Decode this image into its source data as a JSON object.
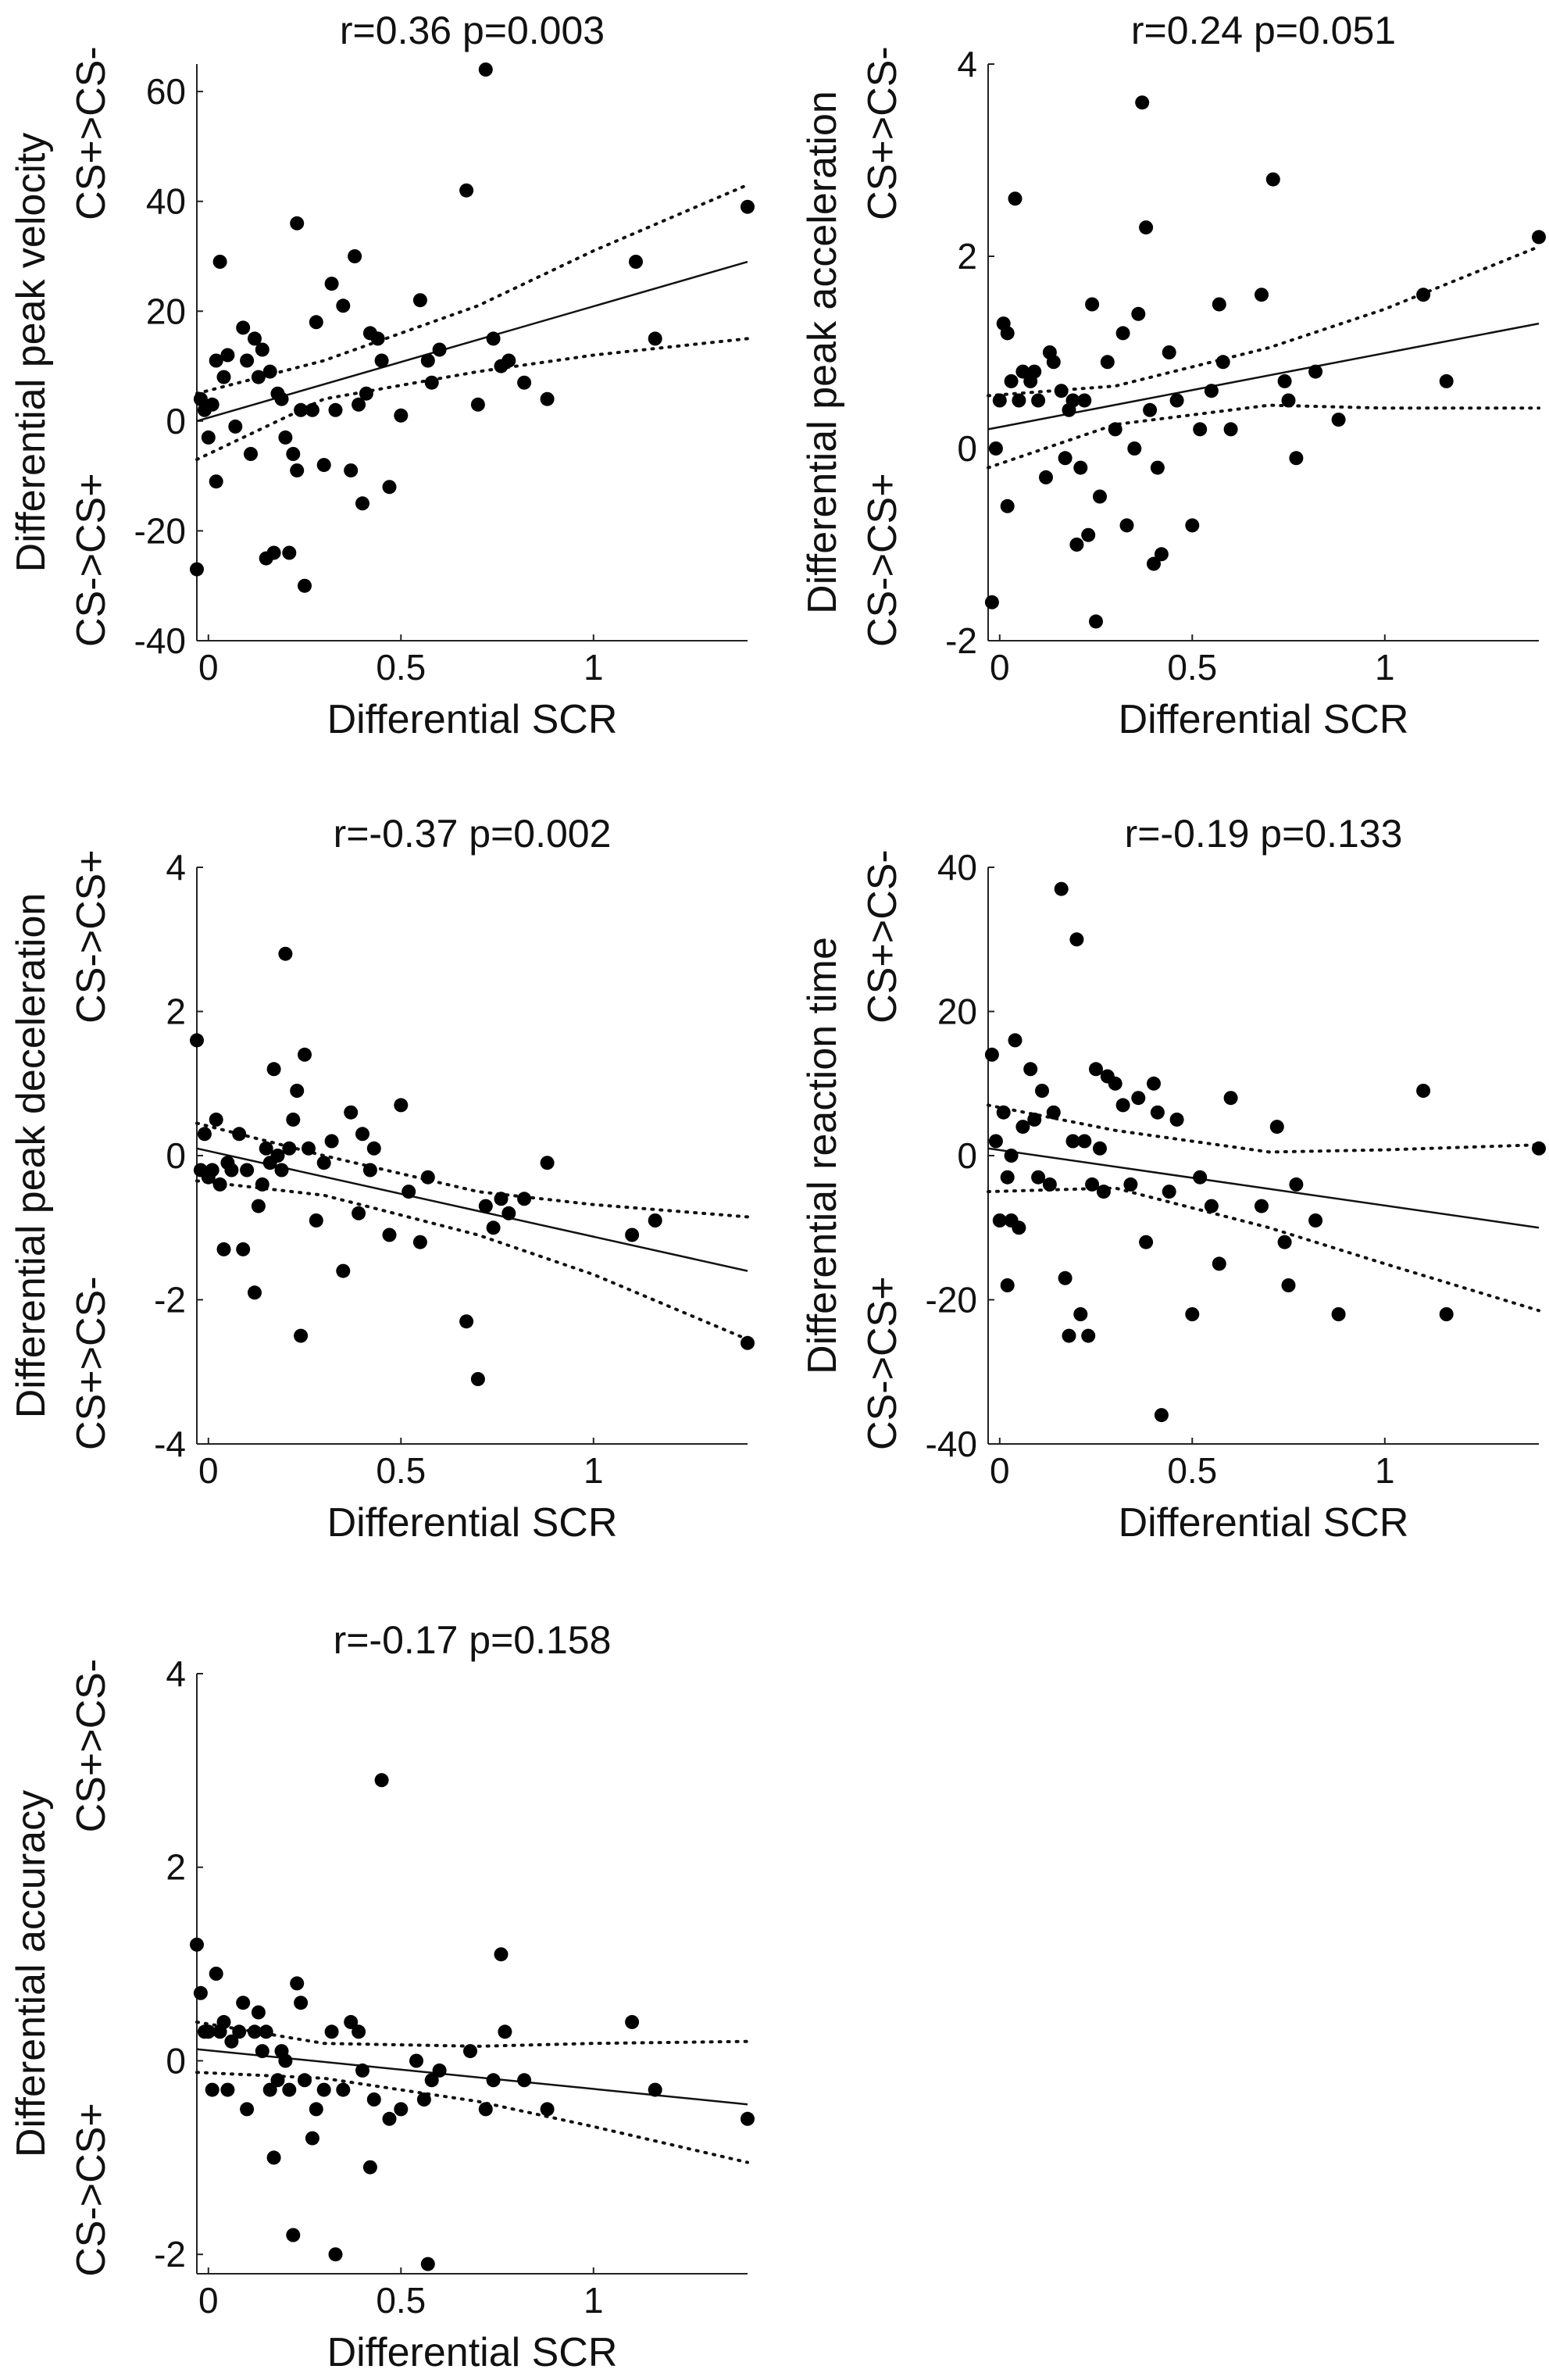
{
  "figure": {
    "description_free": true
  },
  "chart_data": [
    {
      "type": "scatter",
      "title": "r=0.36 p=0.003",
      "xlabel": "Differential SCR",
      "ylabel": "Differential peak velocity",
      "ylabel_top": "CS+>CS-",
      "ylabel_bottom": "CS->CS+",
      "xlim": [
        -0.03,
        1.4
      ],
      "ylim": [
        -40,
        65
      ],
      "xticks": [
        0,
        0.5,
        1
      ],
      "xtick_labels": [
        "0",
        "0.5",
        "1"
      ],
      "yticks": [
        -40,
        -20,
        0,
        20,
        40,
        60
      ],
      "ytick_labels": [
        "-40",
        "-20",
        "0",
        "20",
        "40",
        "60"
      ],
      "points": {
        "x": [
          -0.03,
          -0.02,
          -0.01,
          0.0,
          0.01,
          0.02,
          0.02,
          0.03,
          0.04,
          0.05,
          0.07,
          0.09,
          0.1,
          0.11,
          0.12,
          0.13,
          0.14,
          0.15,
          0.16,
          0.17,
          0.18,
          0.19,
          0.2,
          0.21,
          0.22,
          0.23,
          0.23,
          0.24,
          0.25,
          0.27,
          0.28,
          0.3,
          0.32,
          0.33,
          0.35,
          0.37,
          0.38,
          0.39,
          0.4,
          0.41,
          0.42,
          0.44,
          0.45,
          0.47,
          0.5,
          0.55,
          0.57,
          0.58,
          0.6,
          0.67,
          0.7,
          0.72,
          0.74,
          0.76,
          0.78,
          0.82,
          0.88,
          1.11,
          1.16,
          1.4
        ],
        "y": [
          -27,
          4,
          2,
          -3,
          3,
          -11,
          11,
          29,
          8,
          12,
          -1,
          17,
          11,
          -6,
          15,
          8,
          13,
          -25,
          9,
          -24,
          5,
          4,
          -3,
          -24,
          -6,
          36,
          -9,
          2,
          -30,
          2,
          18,
          -8,
          25,
          2,
          21,
          -9,
          30,
          3,
          -15,
          5,
          16,
          15,
          11,
          -12,
          1,
          22,
          11,
          7,
          13,
          42,
          3,
          64,
          15,
          10,
          11,
          7,
          4,
          29,
          15,
          39
        ]
      },
      "fit_line": {
        "x": [
          -0.03,
          1.4
        ],
        "y": [
          0.0,
          29
        ]
      },
      "ci_upper": {
        "x": [
          -0.03,
          0.3,
          0.7,
          1.0,
          1.4
        ],
        "y": [
          5,
          11,
          21,
          31,
          43
        ]
      },
      "ci_lower": {
        "x": [
          -0.03,
          0.3,
          0.7,
          1.0,
          1.4
        ],
        "y": [
          -7,
          4,
          9,
          12,
          15
        ]
      }
    },
    {
      "type": "scatter",
      "title": "r=0.24 p=0.051",
      "xlabel": "Differential SCR",
      "ylabel": "Differential peak acceleration",
      "ylabel_top": "CS+>CS-",
      "ylabel_bottom": "CS->CS+",
      "xlim": [
        -0.03,
        1.4
      ],
      "ylim": [
        -2,
        4
      ],
      "xticks": [
        0,
        0.5,
        1
      ],
      "xtick_labels": [
        "0",
        "0.5",
        "1"
      ],
      "yticks": [
        -2,
        0,
        2,
        4
      ],
      "ytick_labels": [
        "-2",
        "0",
        "2",
        "4"
      ],
      "points": {
        "x": [
          -0.02,
          -0.01,
          0.0,
          0.01,
          0.02,
          0.02,
          0.03,
          0.04,
          0.05,
          0.06,
          0.08,
          0.09,
          0.1,
          0.12,
          0.13,
          0.14,
          0.16,
          0.17,
          0.18,
          0.19,
          0.2,
          0.21,
          0.22,
          0.23,
          0.24,
          0.25,
          0.26,
          0.28,
          0.3,
          0.32,
          0.33,
          0.35,
          0.36,
          0.37,
          0.38,
          0.39,
          0.4,
          0.41,
          0.42,
          0.44,
          0.46,
          0.5,
          0.52,
          0.55,
          0.57,
          0.58,
          0.6,
          0.68,
          0.71,
          0.74,
          0.75,
          0.77,
          0.82,
          0.88,
          1.1,
          1.16,
          1.4
        ],
        "y": [
          -1.6,
          0.0,
          0.5,
          1.3,
          1.2,
          -0.6,
          0.7,
          2.6,
          0.5,
          0.8,
          0.7,
          0.8,
          0.5,
          -0.3,
          1.0,
          0.9,
          0.6,
          -0.1,
          0.4,
          0.5,
          -1.0,
          -0.2,
          0.5,
          -0.9,
          1.5,
          -1.8,
          -0.5,
          0.9,
          0.2,
          1.2,
          -0.8,
          0.0,
          1.4,
          3.6,
          2.3,
          0.4,
          -1.2,
          -0.2,
          -1.1,
          1.0,
          0.5,
          -0.8,
          0.2,
          0.6,
          1.5,
          0.9,
          0.2,
          1.6,
          2.8,
          0.7,
          0.5,
          -0.1,
          0.8,
          0.3,
          1.6,
          0.7,
          2.2
        ]
      },
      "fit_line": {
        "x": [
          -0.03,
          1.4
        ],
        "y": [
          0.2,
          1.3
        ]
      },
      "ci_upper": {
        "x": [
          -0.03,
          0.3,
          0.7,
          1.0,
          1.4
        ],
        "y": [
          0.55,
          0.65,
          1.05,
          1.45,
          2.1
        ]
      },
      "ci_lower": {
        "x": [
          -0.03,
          0.3,
          0.7,
          1.0,
          1.4
        ],
        "y": [
          -0.2,
          0.25,
          0.45,
          0.42,
          0.42
        ]
      }
    },
    {
      "type": "scatter",
      "title": "r=-0.37 p=0.002",
      "xlabel": "Differential SCR",
      "ylabel": "Differential peak deceleration",
      "ylabel_top": "CS->CS+",
      "ylabel_bottom": "CS+>CS-",
      "xlim": [
        -0.03,
        1.4
      ],
      "ylim": [
        -4,
        4
      ],
      "xticks": [
        0,
        0.5,
        1
      ],
      "xtick_labels": [
        "0",
        "0.5",
        "1"
      ],
      "yticks": [
        -4,
        -2,
        0,
        2,
        4
      ],
      "ytick_labels": [
        "-4",
        "-2",
        "0",
        "2",
        "4"
      ],
      "points": {
        "x": [
          -0.03,
          -0.02,
          -0.01,
          0.0,
          0.01,
          0.02,
          0.03,
          0.04,
          0.05,
          0.06,
          0.08,
          0.09,
          0.1,
          0.12,
          0.13,
          0.14,
          0.15,
          0.16,
          0.17,
          0.18,
          0.19,
          0.2,
          0.21,
          0.22,
          0.23,
          0.24,
          0.25,
          0.26,
          0.28,
          0.3,
          0.32,
          0.35,
          0.37,
          0.39,
          0.4,
          0.42,
          0.43,
          0.47,
          0.5,
          0.52,
          0.55,
          0.57,
          0.67,
          0.7,
          0.72,
          0.74,
          0.76,
          0.78,
          0.82,
          0.88,
          1.1,
          1.16,
          1.4
        ],
        "y": [
          1.6,
          -0.2,
          0.3,
          -0.3,
          -0.2,
          0.5,
          -0.4,
          -1.3,
          -0.1,
          -0.2,
          0.3,
          -1.3,
          -0.2,
          -1.9,
          -0.7,
          -0.4,
          0.1,
          -0.1,
          1.2,
          0.0,
          -0.2,
          2.8,
          0.1,
          0.5,
          0.9,
          -2.5,
          1.4,
          0.1,
          -0.9,
          -0.1,
          0.2,
          -1.6,
          0.6,
          -0.8,
          0.3,
          -0.2,
          0.1,
          -1.1,
          0.7,
          -0.5,
          -1.2,
          -0.3,
          -2.3,
          -3.1,
          -0.7,
          -1.0,
          -0.6,
          -0.8,
          -0.6,
          -0.1,
          -1.1,
          -0.9,
          -2.6
        ]
      },
      "fit_line": {
        "x": [
          -0.03,
          1.4
        ],
        "y": [
          0.1,
          -1.6
        ]
      },
      "ci_upper": {
        "x": [
          -0.03,
          0.3,
          0.7,
          1.0,
          1.4
        ],
        "y": [
          0.45,
          0.0,
          -0.5,
          -0.68,
          -0.85
        ]
      },
      "ci_lower": {
        "x": [
          -0.03,
          0.3,
          0.7,
          1.0,
          1.4
        ],
        "y": [
          -0.35,
          -0.55,
          -1.1,
          -1.65,
          -2.55
        ]
      }
    },
    {
      "type": "scatter",
      "title": "r=-0.19 p=0.133",
      "xlabel": "Differential SCR",
      "ylabel": "Differential reaction time",
      "ylabel_top": "CS+>CS-",
      "ylabel_bottom": "CS->CS+",
      "xlim": [
        -0.03,
        1.4
      ],
      "ylim": [
        -40,
        40
      ],
      "xticks": [
        0,
        0.5,
        1
      ],
      "xtick_labels": [
        "0",
        "0.5",
        "1"
      ],
      "yticks": [
        -40,
        -20,
        0,
        20,
        40
      ],
      "ytick_labels": [
        "-40",
        "-20",
        "0",
        "20",
        "40"
      ],
      "points": {
        "x": [
          -0.02,
          -0.01,
          0.0,
          0.01,
          0.02,
          0.02,
          0.03,
          0.03,
          0.04,
          0.05,
          0.06,
          0.08,
          0.09,
          0.1,
          0.11,
          0.13,
          0.14,
          0.16,
          0.17,
          0.18,
          0.19,
          0.2,
          0.21,
          0.22,
          0.23,
          0.24,
          0.25,
          0.26,
          0.27,
          0.28,
          0.3,
          0.32,
          0.34,
          0.36,
          0.38,
          0.4,
          0.41,
          0.42,
          0.44,
          0.46,
          0.5,
          0.52,
          0.55,
          0.57,
          0.6,
          0.68,
          0.72,
          0.74,
          0.75,
          0.77,
          0.82,
          0.88,
          1.1,
          1.16,
          1.4
        ],
        "y": [
          14,
          2,
          -9,
          6,
          -18,
          -3,
          0,
          -9,
          16,
          -10,
          4,
          12,
          5,
          -3,
          9,
          -4,
          6,
          37,
          -17,
          -25,
          2,
          30,
          -22,
          2,
          -25,
          -4,
          12,
          1,
          -5,
          11,
          10,
          7,
          -4,
          8,
          -12,
          10,
          6,
          -36,
          -5,
          5,
          -22,
          -3,
          -7,
          -15,
          8,
          -7,
          4,
          -12,
          -18,
          -4,
          -9,
          -22,
          9,
          -22,
          1
        ]
      },
      "fit_line": {
        "x": [
          -0.03,
          1.4
        ],
        "y": [
          1.0,
          -10
        ]
      },
      "ci_upper": {
        "x": [
          -0.03,
          0.3,
          0.7,
          1.0,
          1.4
        ],
        "y": [
          7,
          3.5,
          0.5,
          0.8,
          1.5
        ]
      },
      "ci_lower": {
        "x": [
          -0.03,
          0.3,
          0.7,
          1.0,
          1.4
        ],
        "y": [
          -5,
          -4.5,
          -10,
          -15,
          -21.5
        ]
      }
    },
    {
      "type": "scatter",
      "title": "r=-0.17 p=0.158",
      "xlabel": "Differential SCR",
      "ylabel": "Differential accuracy",
      "ylabel_top": "CS+>CS-",
      "ylabel_bottom": "CS->CS+",
      "xlim": [
        -0.03,
        1.4
      ],
      "ylim": [
        -2.2,
        4
      ],
      "xticks": [
        0,
        0.5,
        1
      ],
      "xtick_labels": [
        "0",
        "0.5",
        "1"
      ],
      "yticks": [
        -2,
        0,
        2,
        4
      ],
      "ytick_labels": [
        "-2",
        "0",
        "2",
        "4"
      ],
      "points": {
        "x": [
          -0.03,
          -0.02,
          -0.01,
          0.0,
          0.01,
          0.02,
          0.03,
          0.04,
          0.05,
          0.06,
          0.08,
          0.09,
          0.1,
          0.12,
          0.13,
          0.14,
          0.15,
          0.16,
          0.17,
          0.18,
          0.19,
          0.2,
          0.21,
          0.22,
          0.23,
          0.24,
          0.25,
          0.27,
          0.28,
          0.3,
          0.32,
          0.33,
          0.35,
          0.37,
          0.39,
          0.4,
          0.42,
          0.43,
          0.45,
          0.47,
          0.5,
          0.54,
          0.56,
          0.57,
          0.58,
          0.6,
          0.68,
          0.72,
          0.74,
          0.76,
          0.77,
          0.82,
          0.88,
          1.1,
          1.16,
          1.4
        ],
        "y": [
          1.2,
          0.7,
          0.3,
          0.3,
          -0.3,
          0.9,
          0.3,
          0.4,
          -0.3,
          0.2,
          0.3,
          0.6,
          -0.5,
          0.3,
          0.5,
          0.1,
          0.3,
          -0.3,
          -1.0,
          -0.2,
          0.1,
          0.0,
          -0.3,
          -1.8,
          0.8,
          0.6,
          -0.2,
          -0.8,
          -0.5,
          -0.3,
          0.3,
          -2.0,
          -0.3,
          0.4,
          0.3,
          -0.1,
          -1.1,
          -0.4,
          2.9,
          -0.6,
          -0.5,
          0.0,
          -0.4,
          -2.1,
          -0.2,
          -0.1,
          0.1,
          -0.5,
          -0.2,
          1.1,
          0.3,
          -0.2,
          -0.5,
          0.4,
          -0.3,
          -0.6
        ]
      },
      "fit_line": {
        "x": [
          -0.03,
          1.4
        ],
        "y": [
          0.12,
          -0.45
        ]
      },
      "ci_upper": {
        "x": [
          -0.03,
          0.3,
          0.7,
          1.0,
          1.4
        ],
        "y": [
          0.4,
          0.18,
          0.15,
          0.18,
          0.2
        ]
      },
      "ci_lower": {
        "x": [
          -0.03,
          0.3,
          0.7,
          1.0,
          1.4
        ],
        "y": [
          -0.12,
          -0.18,
          -0.42,
          -0.68,
          -1.05
        ]
      }
    }
  ]
}
